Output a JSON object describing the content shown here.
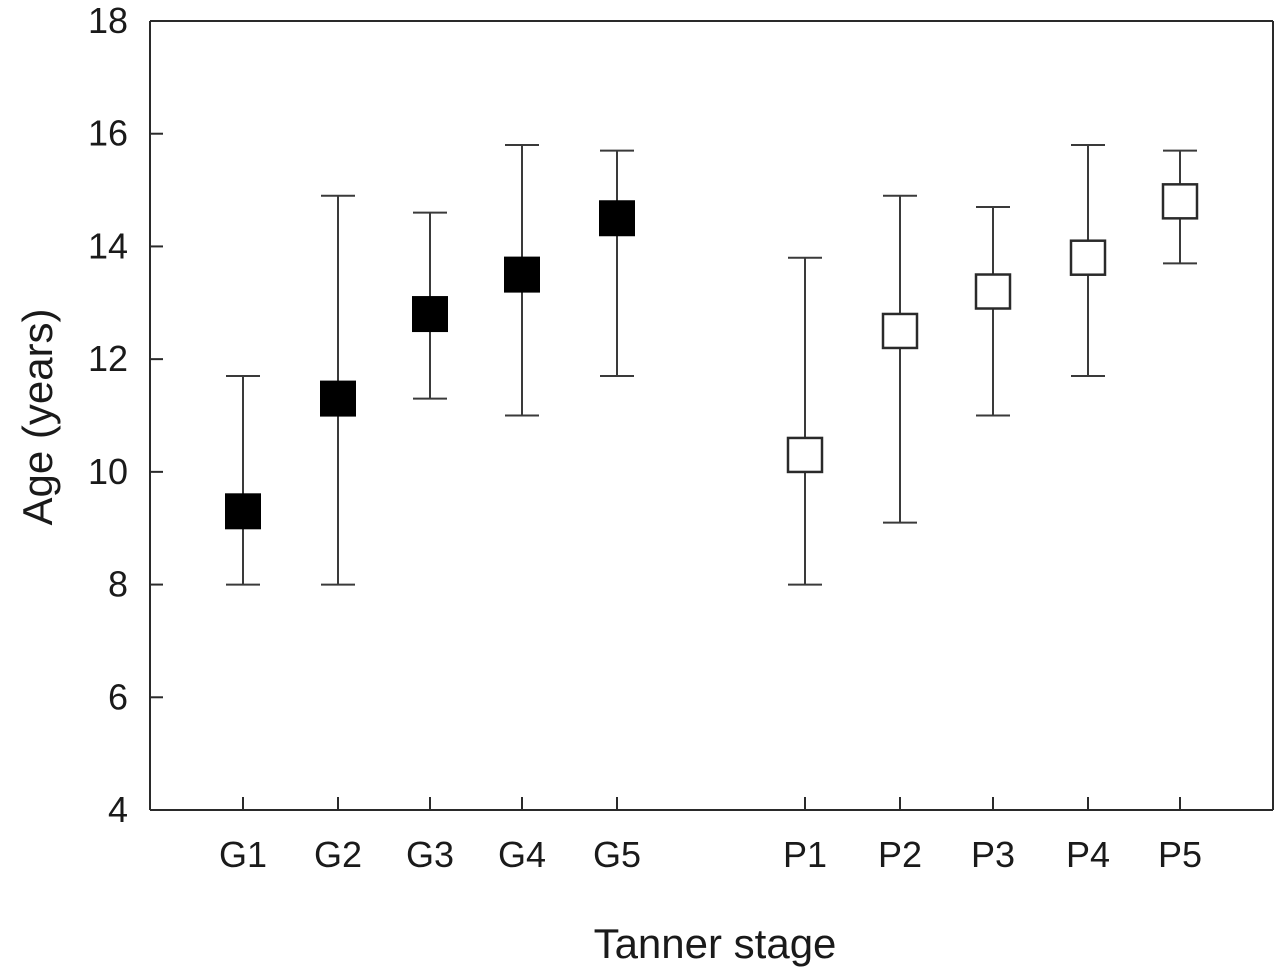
{
  "chart_data": {
    "type": "scatter",
    "xlabel": "Tanner stage",
    "ylabel": "Age (years)",
    "ylim": [
      4,
      18
    ],
    "yticks": [
      4,
      6,
      8,
      10,
      12,
      14,
      16,
      18
    ],
    "categories": [
      "G1",
      "G2",
      "G3",
      "G4",
      "G5",
      "P1",
      "P2",
      "P3",
      "P4",
      "P5"
    ],
    "series": [
      {
        "name": "G",
        "marker": "filled-square",
        "points": [
          {
            "label": "G1",
            "value": 9.3,
            "low": 8.0,
            "high": 11.7
          },
          {
            "label": "G2",
            "value": 11.3,
            "low": 8.0,
            "high": 14.9
          },
          {
            "label": "G3",
            "value": 12.8,
            "low": 11.3,
            "high": 14.6
          },
          {
            "label": "G4",
            "value": 13.5,
            "low": 11.0,
            "high": 15.8
          },
          {
            "label": "G5",
            "value": 14.5,
            "low": 11.7,
            "high": 15.7
          }
        ]
      },
      {
        "name": "P",
        "marker": "open-square",
        "points": [
          {
            "label": "P1",
            "value": 10.3,
            "low": 8.0,
            "high": 13.8
          },
          {
            "label": "P2",
            "value": 12.5,
            "low": 9.1,
            "high": 14.9
          },
          {
            "label": "P3",
            "value": 13.2,
            "low": 11.0,
            "high": 14.7
          },
          {
            "label": "P4",
            "value": 13.8,
            "low": 11.7,
            "high": 15.8
          },
          {
            "label": "P5",
            "value": 14.8,
            "low": 13.7,
            "high": 15.7
          }
        ]
      }
    ],
    "grid": false,
    "legend": "none",
    "colors": {
      "axis": "#2a2a2a",
      "whisker": "#3a3a3a",
      "filled_marker": "#000000",
      "open_marker_fill": "#ffffff",
      "open_marker_stroke": "#2a2a2a"
    }
  }
}
